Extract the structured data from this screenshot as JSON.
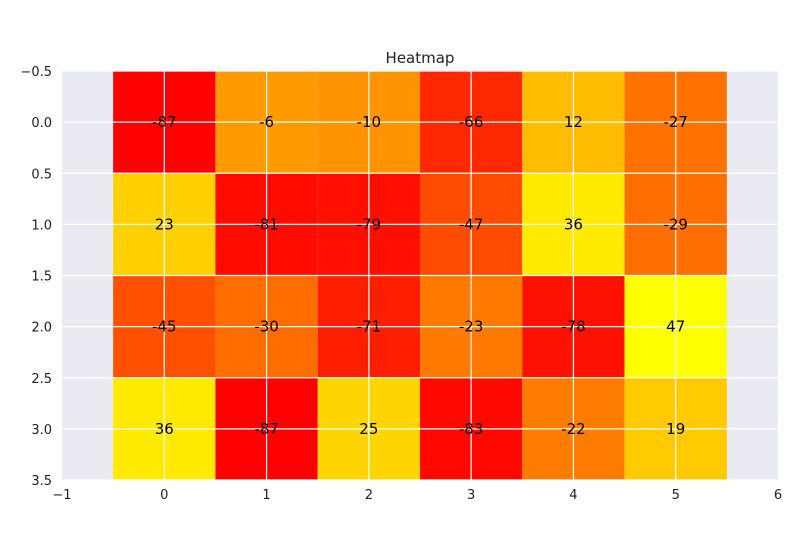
{
  "chart_data": {
    "type": "heatmap",
    "title": "Heatmap",
    "xlabel": "",
    "ylabel": "",
    "xlim": [
      -1,
      6
    ],
    "ylim": [
      3.5,
      -0.5
    ],
    "x_ticks": [
      "−1",
      "0",
      "1",
      "2",
      "3",
      "4",
      "5",
      "6"
    ],
    "y_ticks": [
      "−0.5",
      "0.0",
      "0.5",
      "1.0",
      "1.5",
      "2.0",
      "2.5",
      "3.0",
      "3.5"
    ],
    "x_tick_values": [
      -1,
      0,
      1,
      2,
      3,
      4,
      5,
      6
    ],
    "y_tick_values": [
      -0.5,
      0,
      0.5,
      1,
      1.5,
      2,
      2.5,
      3,
      3.5
    ],
    "grid": true,
    "colormap": "autumn",
    "value_range": [
      -87,
      47
    ],
    "values": [
      [
        -87,
        -6,
        -10,
        -66,
        12,
        -27
      ],
      [
        23,
        -81,
        -79,
        -47,
        36,
        -29
      ],
      [
        -45,
        -30,
        -71,
        -23,
        -78,
        47
      ],
      [
        36,
        -87,
        25,
        -83,
        -22,
        19
      ]
    ],
    "cell_labels": [
      [
        "-87",
        "-6",
        "-10",
        "-66",
        "12",
        "-27"
      ],
      [
        "23",
        "-81",
        "-79",
        "-47",
        "36",
        "-29"
      ],
      [
        "-45",
        "-30",
        "-71",
        "-23",
        "-78",
        "47"
      ],
      [
        "36",
        "-87",
        "25",
        "-83",
        "-22",
        "19"
      ]
    ],
    "colors": {
      "axes_background": "#eaeaf2",
      "grid": "#ffffff",
      "text": "#222222"
    }
  }
}
